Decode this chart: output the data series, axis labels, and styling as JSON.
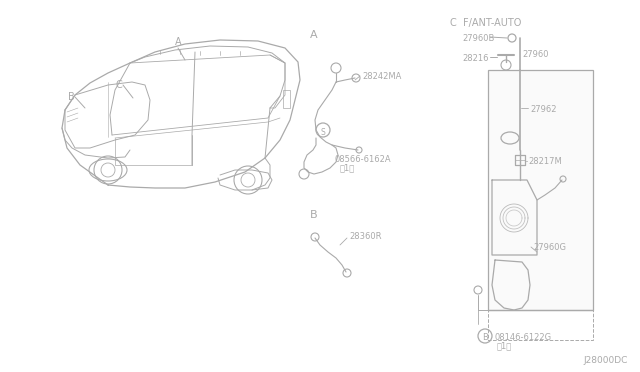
{
  "bg_color": "#ffffff",
  "line_color": "#aaaaaa",
  "text_color": "#aaaaaa",
  "part_number_bottom": "J28000DC",
  "labels": {
    "section_A_label": "A",
    "section_B_label": "B",
    "section_C_label": "C  F/ANT-AUTO",
    "car_A": "A",
    "car_B": "B",
    "car_C": "C",
    "part_28242MA": "28242MA",
    "part_08566": "08566-6162A",
    "part_08566_qty": "（1）",
    "part_28360R": "28360R",
    "part_27960B": "27960B",
    "part_28216": "28216",
    "part_27960": "27960",
    "part_27962": "27962",
    "part_28217M": "28217M",
    "part_27960G": "27960G",
    "part_08146": "08146-6122G",
    "part_08146_qty": "（1）",
    "circle_S": "S",
    "circle_B": "B"
  }
}
